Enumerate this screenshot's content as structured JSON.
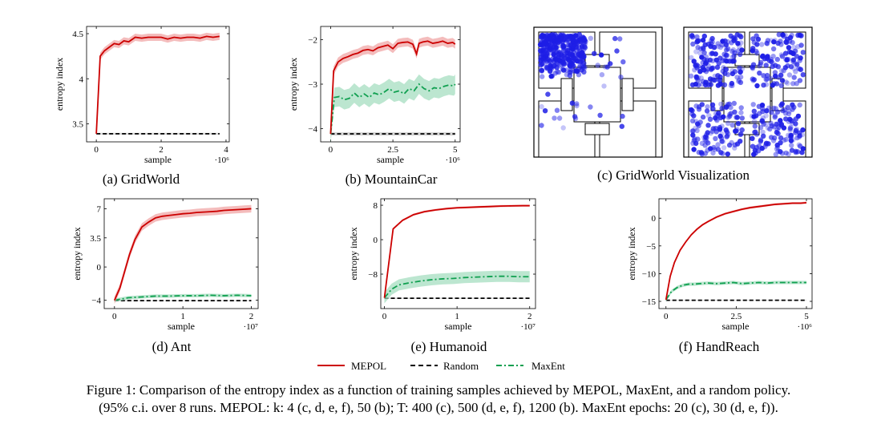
{
  "colors": {
    "mepol": "#cc0000",
    "mepol_band": "#f0a0a0",
    "random": "#000000",
    "random_band": "#c8c8c8",
    "maxent": "#10a050",
    "maxent_band": "#9fdcbc",
    "dot": "#1e1ee6"
  },
  "legend": {
    "mepol": "MEPOL",
    "random": "Random",
    "maxent": "MaxEnt"
  },
  "panels": [
    {
      "id": "a",
      "caption": "(a) GridWorld",
      "xlabel": "sample",
      "ylabel": "entropy index",
      "multiplier": "·10⁶",
      "xlim": [
        -0.3,
        4.1
      ],
      "ylim": [
        3.3,
        4.58
      ],
      "xticks": [
        0,
        2,
        4
      ],
      "xtick_labels": [
        "0",
        "2",
        "4"
      ],
      "yticks": [
        3.5,
        4,
        4.5
      ],
      "ytick_labels": [
        "3.5",
        "4",
        "4.5"
      ],
      "mepol": {
        "x": [
          0,
          0.12,
          0.25,
          0.4,
          0.55,
          0.7,
          0.85,
          1.0,
          1.2,
          1.4,
          1.6,
          1.8,
          2.0,
          2.2,
          2.4,
          2.6,
          2.8,
          3.0,
          3.2,
          3.4,
          3.6,
          3.8
        ],
        "y": [
          3.39,
          4.25,
          4.31,
          4.35,
          4.39,
          4.38,
          4.42,
          4.41,
          4.46,
          4.45,
          4.46,
          4.46,
          4.46,
          4.44,
          4.46,
          4.45,
          4.46,
          4.46,
          4.45,
          4.47,
          4.46,
          4.47
        ],
        "band": 0.04
      },
      "random": {
        "x": [
          0,
          3.8
        ],
        "y": [
          3.39,
          3.39
        ],
        "band": 0.01
      }
    },
    {
      "id": "b",
      "caption": "(b) MountainCar",
      "xlabel": "sample",
      "ylabel": "entropy index",
      "multiplier": "·10⁶",
      "xlim": [
        -0.4,
        5.2
      ],
      "ylim": [
        -4.3,
        -1.7
      ],
      "xticks": [
        0,
        2.5,
        5
      ],
      "xtick_labels": [
        "0",
        "2.5",
        "5"
      ],
      "yticks": [
        -2,
        -3,
        -4
      ],
      "ytick_labels": [
        "−2",
        "−3",
        "−4"
      ],
      "mepol": {
        "x": [
          0,
          0.12,
          0.3,
          0.5,
          0.7,
          0.9,
          1.1,
          1.3,
          1.5,
          1.7,
          1.9,
          2.1,
          2.3,
          2.5,
          2.7,
          2.9,
          3.1,
          3.3,
          3.45,
          3.55,
          3.7,
          3.9,
          4.1,
          4.3,
          4.5,
          4.7,
          4.9,
          5.0
        ],
        "y": [
          -4.12,
          -2.7,
          -2.5,
          -2.42,
          -2.38,
          -2.33,
          -2.3,
          -2.24,
          -2.22,
          -2.25,
          -2.18,
          -2.15,
          -2.12,
          -2.2,
          -2.08,
          -2.06,
          -2.05,
          -2.1,
          -2.32,
          -2.08,
          -2.05,
          -2.03,
          -2.08,
          -2.06,
          -2.03,
          -2.08,
          -2.06,
          -2.1
        ],
        "band": 0.1
      },
      "maxent": {
        "x": [
          0,
          0.15,
          0.35,
          0.55,
          0.75,
          0.95,
          1.15,
          1.35,
          1.55,
          1.75,
          1.95,
          2.15,
          2.35,
          2.55,
          2.75,
          2.95,
          3.15,
          3.35,
          3.55,
          3.75,
          3.95,
          4.15,
          4.35,
          4.55,
          4.75,
          4.95,
          5.0
        ],
        "y": [
          -4.12,
          -3.3,
          -3.28,
          -3.35,
          -3.32,
          -3.2,
          -3.3,
          -3.22,
          -3.3,
          -3.2,
          -3.24,
          -3.18,
          -3.1,
          -3.18,
          -3.15,
          -3.22,
          -3.1,
          -3.15,
          -3.0,
          -3.1,
          -3.15,
          -3.08,
          -3.1,
          -3.05,
          -3.02,
          -3.04,
          -3.0
        ],
        "band": 0.22
      },
      "random": {
        "x": [
          0,
          5.0
        ],
        "y": [
          -4.12,
          -4.12
        ],
        "band": 0.04
      }
    },
    {
      "id": "d",
      "caption": "(d) Ant",
      "xlabel": "sample",
      "ylabel": "entropy index",
      "multiplier": "·10⁷",
      "xlim": [
        -0.15,
        2.1
      ],
      "ylim": [
        -5,
        8.2
      ],
      "xticks": [
        0,
        1,
        2
      ],
      "xtick_labels": [
        "0",
        "1",
        "2"
      ],
      "yticks": [
        -4,
        0,
        3.5,
        7
      ],
      "ytick_labels": [
        "−4",
        "0",
        "3.5",
        "7"
      ],
      "mepol": {
        "x": [
          0,
          0.08,
          0.15,
          0.22,
          0.3,
          0.4,
          0.5,
          0.6,
          0.7,
          0.8,
          0.9,
          1.0,
          1.1,
          1.2,
          1.3,
          1.4,
          1.5,
          1.6,
          1.7,
          1.8,
          1.9,
          2.0
        ],
        "y": [
          -4,
          -2.5,
          -0.5,
          1.5,
          3.3,
          4.8,
          5.4,
          5.9,
          6.1,
          6.2,
          6.3,
          6.4,
          6.45,
          6.55,
          6.6,
          6.65,
          6.7,
          6.8,
          6.85,
          6.9,
          6.95,
          7.0
        ],
        "band": 0.45
      },
      "maxent": {
        "x": [
          0,
          0.2,
          0.4,
          0.6,
          0.8,
          1.0,
          1.2,
          1.4,
          1.6,
          1.8,
          2.0
        ],
        "y": [
          -4,
          -3.7,
          -3.6,
          -3.5,
          -3.5,
          -3.45,
          -3.45,
          -3.4,
          -3.45,
          -3.4,
          -3.45
        ],
        "band": 0.2
      },
      "random": {
        "x": [
          0,
          2.0
        ],
        "y": [
          -4.05,
          -4.05
        ],
        "band": 0.05
      }
    },
    {
      "id": "e",
      "caption": "(e) Humanoid",
      "xlabel": "sample",
      "ylabel": "entropy index",
      "multiplier": "·10⁷",
      "xlim": [
        -0.05,
        2.08
      ],
      "ylim": [
        -16,
        9.5
      ],
      "xticks": [
        0,
        1,
        2
      ],
      "xtick_labels": [
        "0",
        "1",
        "2"
      ],
      "yticks": [
        8,
        0,
        -8
      ],
      "ytick_labels": [
        "8",
        "0",
        "−8"
      ],
      "mepol": {
        "x": [
          0,
          0.12,
          0.25,
          0.4,
          0.55,
          0.7,
          0.85,
          1.0,
          1.15,
          1.3,
          1.45,
          1.6,
          1.75,
          1.9,
          2.0
        ],
        "y": [
          -13.5,
          2.5,
          4.5,
          5.8,
          6.5,
          6.9,
          7.2,
          7.4,
          7.5,
          7.6,
          7.7,
          7.8,
          7.85,
          7.9,
          7.9
        ],
        "band": 0.25
      },
      "maxent": {
        "x": [
          0,
          0.1,
          0.2,
          0.35,
          0.5,
          0.65,
          0.8,
          0.95,
          1.1,
          1.25,
          1.4,
          1.55,
          1.7,
          1.85,
          2.0
        ],
        "y": [
          -13.5,
          -11.5,
          -10.5,
          -10.0,
          -9.6,
          -9.3,
          -9.1,
          -9.0,
          -8.8,
          -8.7,
          -8.6,
          -8.5,
          -8.5,
          -8.6,
          -8.6
        ],
        "band": 1.3
      },
      "random": {
        "x": [
          0,
          2.0
        ],
        "y": [
          -13.6,
          -13.6
        ],
        "band": 0.1
      }
    },
    {
      "id": "f",
      "caption": "(f) HandReach",
      "xlabel": "sample",
      "ylabel": "entropy index",
      "multiplier": "·10⁶",
      "xlim": [
        -0.25,
        5.2
      ],
      "ylim": [
        -16.3,
        3.5
      ],
      "xticks": [
        0,
        2.5,
        5
      ],
      "xtick_labels": [
        "0",
        "2.5",
        "5"
      ],
      "yticks": [
        0,
        -5,
        -10,
        -15
      ],
      "ytick_labels": [
        "0",
        "−5",
        "−10",
        "−15"
      ],
      "mepol": {
        "x": [
          0,
          0.15,
          0.3,
          0.5,
          0.7,
          0.9,
          1.1,
          1.3,
          1.5,
          1.8,
          2.1,
          2.4,
          2.7,
          3.0,
          3.3,
          3.6,
          3.9,
          4.2,
          4.5,
          4.8,
          5.0
        ],
        "y": [
          -14.7,
          -10.5,
          -8.0,
          -5.8,
          -4.3,
          -3.0,
          -2.0,
          -1.2,
          -0.6,
          0.2,
          0.8,
          1.2,
          1.6,
          1.9,
          2.1,
          2.3,
          2.5,
          2.6,
          2.7,
          2.7,
          2.8
        ],
        "band": 0.2
      },
      "maxent": {
        "x": [
          0,
          0.2,
          0.4,
          0.6,
          0.8,
          1.0,
          1.2,
          1.5,
          1.8,
          2.1,
          2.4,
          2.7,
          3.0,
          3.3,
          3.6,
          3.9,
          4.2,
          4.5,
          4.8,
          5.0
        ],
        "y": [
          -14.7,
          -13.2,
          -12.5,
          -12.1,
          -11.9,
          -11.9,
          -11.8,
          -11.7,
          -11.8,
          -11.7,
          -11.6,
          -11.8,
          -11.7,
          -11.6,
          -11.7,
          -11.6,
          -11.6,
          -11.6,
          -11.6,
          -11.6
        ],
        "band": 0.3
      },
      "random": {
        "x": [
          0,
          5.0
        ],
        "y": [
          -14.8,
          -14.8
        ],
        "band": 0.05
      }
    }
  ],
  "gridworld": {
    "caption": "(c) GridWorld Visualization"
  },
  "caption_line1": "Figure 1: Comparison of the entropy index as a function of training samples achieved by MEPOL, MaxEnt, and a random policy.",
  "caption_line2": "(95% c.i. over 8 runs. MEPOL: k: 4 (c, d, e, f), 50 (b); T: 400 (c), 500 (d, e, f), 1200 (b). MaxEnt epochs: 20 (c), 30 (d, e, f))."
}
